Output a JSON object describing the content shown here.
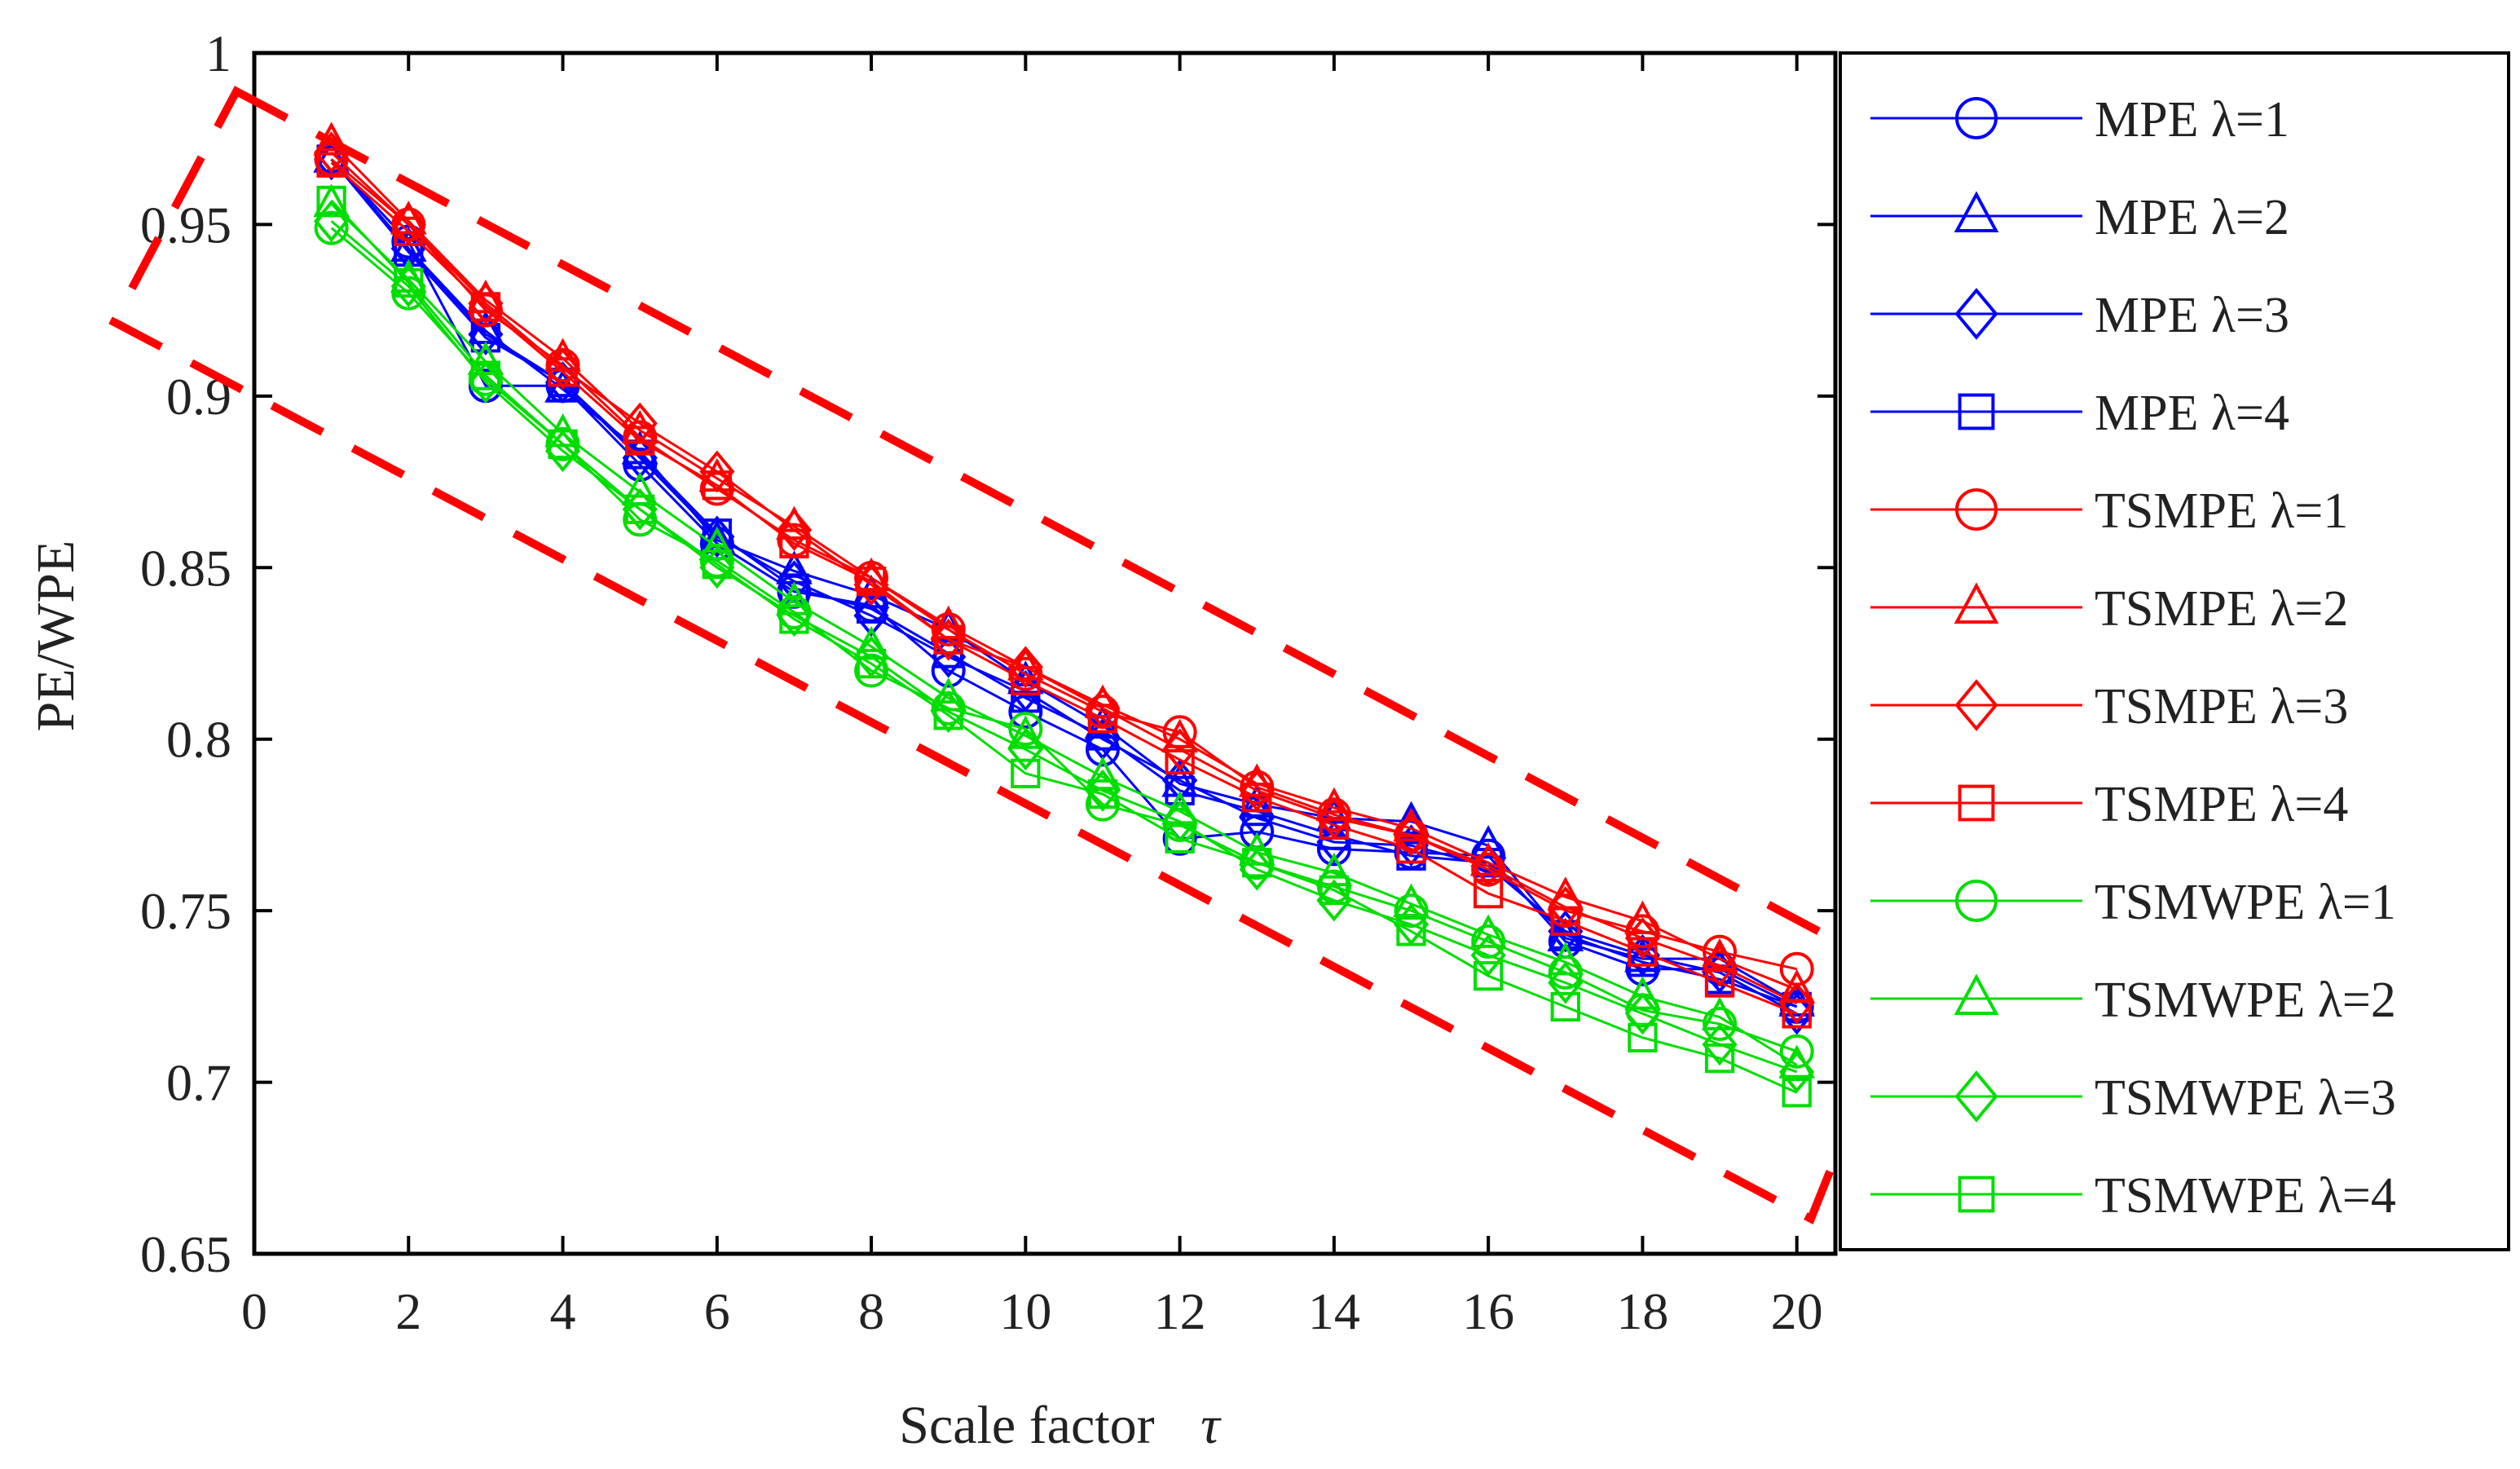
{
  "chart_data": {
    "type": "line",
    "xlabel": "Scale factor",
    "xlabel_symbol": "τ",
    "ylabel": "PE/WPE",
    "xlim": [
      0,
      20.5
    ],
    "ylim": [
      0.65,
      1.0
    ],
    "xticks": [
      0,
      2,
      4,
      6,
      8,
      10,
      12,
      14,
      16,
      18,
      20
    ],
    "yticks": [
      0.65,
      0.7,
      0.75,
      0.8,
      0.85,
      0.9,
      0.95,
      1
    ],
    "ytick_labels": [
      "0.65",
      "0.7",
      "0.75",
      "0.8",
      "0.85",
      "0.9",
      "0.95",
      "1"
    ],
    "x": [
      1,
      2,
      3,
      4,
      5,
      6,
      7,
      8,
      9,
      10,
      11,
      12,
      13,
      14,
      15,
      16,
      17,
      18,
      19,
      20
    ],
    "legend_position": "right",
    "annotation": "red dashed box enclosing all curves",
    "series": [
      {
        "name": "MPE λ=1",
        "color": "#0000ff",
        "marker": "circle",
        "values": [
          0.969,
          0.945,
          0.903,
          0.903,
          0.88,
          0.857,
          0.843,
          0.839,
          0.82,
          0.808,
          0.797,
          0.771,
          0.773,
          0.768,
          0.767,
          0.766,
          0.741,
          0.733,
          0.733,
          0.722
        ]
      },
      {
        "name": "MPE λ=2",
        "color": "#0000ff",
        "marker": "triangle",
        "values": [
          0.969,
          0.943,
          0.919,
          0.902,
          0.884,
          0.858,
          0.849,
          0.842,
          0.832,
          0.817,
          0.804,
          0.787,
          0.781,
          0.777,
          0.776,
          0.769,
          0.742,
          0.736,
          0.736,
          0.723
        ]
      },
      {
        "name": "MPE λ=3",
        "color": "#0000ff",
        "marker": "diamond",
        "values": [
          0.969,
          0.943,
          0.918,
          0.904,
          0.882,
          0.859,
          0.846,
          0.836,
          0.824,
          0.814,
          0.8,
          0.788,
          0.777,
          0.77,
          0.769,
          0.763,
          0.744,
          0.737,
          0.732,
          0.72
        ]
      },
      {
        "name": "MPE λ=4",
        "color": "#0000ff",
        "marker": "square",
        "values": [
          0.969,
          0.942,
          0.917,
          0.904,
          0.883,
          0.86,
          0.844,
          0.838,
          0.825,
          0.812,
          0.801,
          0.785,
          0.779,
          0.772,
          0.766,
          0.764,
          0.743,
          0.735,
          0.73,
          0.722
        ]
      },
      {
        "name": "TSMPE λ=1",
        "color": "#ff0000",
        "marker": "circle",
        "values": [
          0.969,
          0.95,
          0.925,
          0.909,
          0.888,
          0.873,
          0.858,
          0.847,
          0.832,
          0.819,
          0.808,
          0.802,
          0.786,
          0.778,
          0.772,
          0.762,
          0.75,
          0.744,
          0.738,
          0.733
        ]
      },
      {
        "name": "TSMPE λ=2",
        "color": "#ff0000",
        "marker": "triangle",
        "values": [
          0.974,
          0.951,
          0.928,
          0.911,
          0.89,
          0.876,
          0.862,
          0.847,
          0.833,
          0.821,
          0.81,
          0.8,
          0.787,
          0.78,
          0.774,
          0.764,
          0.754,
          0.747,
          0.736,
          0.727
        ]
      },
      {
        "name": "TSMPE λ=3",
        "color": "#ff0000",
        "marker": "diamond",
        "values": [
          0.971,
          0.95,
          0.927,
          0.908,
          0.892,
          0.878,
          0.861,
          0.845,
          0.829,
          0.821,
          0.809,
          0.797,
          0.785,
          0.777,
          0.772,
          0.763,
          0.751,
          0.742,
          0.734,
          0.723
        ]
      },
      {
        "name": "TSMPE λ=4",
        "color": "#ff0000",
        "marker": "square",
        "values": [
          0.968,
          0.948,
          0.926,
          0.907,
          0.887,
          0.874,
          0.857,
          0.846,
          0.829,
          0.817,
          0.806,
          0.794,
          0.783,
          0.775,
          0.768,
          0.755,
          0.747,
          0.738,
          0.729,
          0.72
        ]
      },
      {
        "name": "TSMWPE λ=1",
        "color": "#00dd00",
        "marker": "circle",
        "values": [
          0.949,
          0.93,
          0.905,
          0.886,
          0.864,
          0.852,
          0.837,
          0.82,
          0.809,
          0.803,
          0.781,
          0.775,
          0.764,
          0.757,
          0.75,
          0.741,
          0.732,
          0.721,
          0.717,
          0.709
        ]
      },
      {
        "name": "TSMWPE λ=2",
        "color": "#00dd00",
        "marker": "triangle",
        "values": [
          0.956,
          0.934,
          0.91,
          0.889,
          0.872,
          0.856,
          0.84,
          0.827,
          0.812,
          0.801,
          0.789,
          0.779,
          0.767,
          0.761,
          0.752,
          0.743,
          0.735,
          0.725,
          0.719,
          0.705
        ]
      },
      {
        "name": "TSMWPE λ=3",
        "color": "#00dd00",
        "marker": "diamond",
        "values": [
          0.951,
          0.932,
          0.904,
          0.884,
          0.867,
          0.85,
          0.836,
          0.824,
          0.808,
          0.797,
          0.785,
          0.776,
          0.762,
          0.753,
          0.746,
          0.737,
          0.729,
          0.72,
          0.711,
          0.703
        ]
      },
      {
        "name": "TSMWPE λ=4",
        "color": "#00dd00",
        "marker": "square",
        "values": [
          0.957,
          0.933,
          0.906,
          0.886,
          0.867,
          0.851,
          0.835,
          0.822,
          0.807,
          0.79,
          0.784,
          0.771,
          0.764,
          0.756,
          0.744,
          0.731,
          0.722,
          0.713,
          0.707,
          0.697
        ]
      }
    ]
  }
}
